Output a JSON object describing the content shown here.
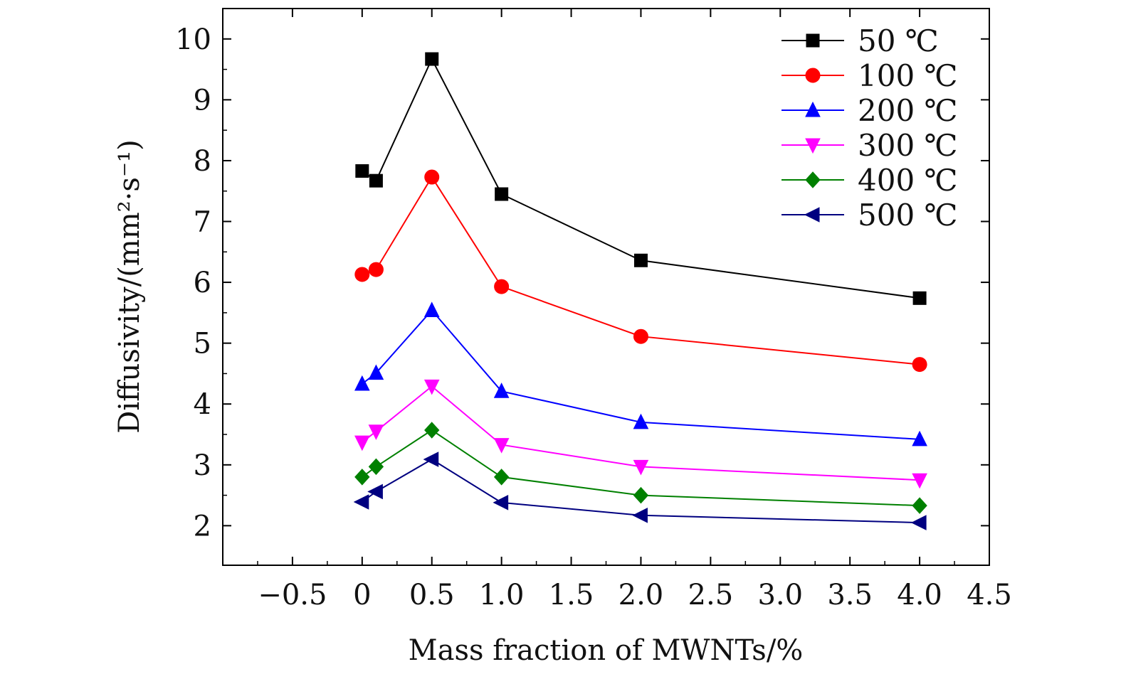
{
  "chart_data": {
    "type": "line",
    "title": "",
    "xlabel": "Mass fraction of MWNTs/%",
    "ylabel": "Diffusivity/(mm²·s⁻¹)",
    "xlim": [
      -1.0,
      4.5
    ],
    "ylim": [
      1.35,
      10.5
    ],
    "x_ticks": [
      {
        "value": -0.5,
        "label": "−0.5"
      },
      {
        "value": 0,
        "label": "0"
      },
      {
        "value": 0.5,
        "label": "0.5"
      },
      {
        "value": 1.0,
        "label": "1.0"
      },
      {
        "value": 1.5,
        "label": "1.5"
      },
      {
        "value": 2.0,
        "label": "2.0"
      },
      {
        "value": 2.5,
        "label": "2.5"
      },
      {
        "value": 3.0,
        "label": "3.0"
      },
      {
        "value": 3.5,
        "label": "3.5"
      },
      {
        "value": 4.0,
        "label": "4.0"
      },
      {
        "value": 4.5,
        "label": "4.5"
      }
    ],
    "y_ticks": [
      2,
      3,
      4,
      5,
      6,
      7,
      8,
      9,
      10
    ],
    "grid": false,
    "legend_position": "top-right",
    "x": [
      0,
      0.1,
      0.5,
      1.0,
      2.0,
      4.0
    ],
    "series": [
      {
        "name": "50 ℃",
        "color": "#000000",
        "marker": "square",
        "values": [
          7.83,
          7.67,
          9.67,
          7.45,
          6.36,
          5.74
        ]
      },
      {
        "name": "100 ℃",
        "color": "#ff0000",
        "marker": "circle",
        "values": [
          6.13,
          6.21,
          7.73,
          5.93,
          5.11,
          4.65
        ]
      },
      {
        "name": "200 ℃",
        "color": "#0000ff",
        "marker": "triangle-up",
        "values": [
          4.33,
          4.51,
          5.54,
          4.21,
          3.7,
          3.42
        ]
      },
      {
        "name": "300 ℃",
        "color": "#ff00ff",
        "marker": "triangle-down",
        "values": [
          3.37,
          3.55,
          4.29,
          3.33,
          2.97,
          2.75
        ]
      },
      {
        "name": "400 ℃",
        "color": "#008000",
        "marker": "diamond",
        "values": [
          2.8,
          2.97,
          3.57,
          2.8,
          2.5,
          2.33
        ]
      },
      {
        "name": "500 ℃",
        "color": "#000080",
        "marker": "triangle-left",
        "values": [
          2.39,
          2.56,
          3.09,
          2.38,
          2.17,
          2.05
        ]
      }
    ]
  }
}
